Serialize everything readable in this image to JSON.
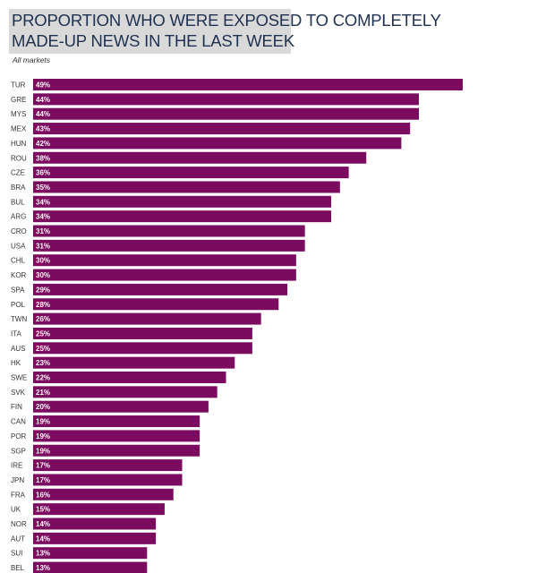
{
  "chart_data": {
    "type": "bar",
    "orientation": "horizontal",
    "title_lines": [
      "PROPORTION WHO WERE EXPOSED TO COMPLETELY",
      "MADE-UP NEWS IN THE LAST WEEK"
    ],
    "subtitle": "All markets",
    "categories": [
      "TUR",
      "GRE",
      "MYS",
      "MEX",
      "HUN",
      "ROU",
      "CZE",
      "BRA",
      "BUL",
      "ARG",
      "CRO",
      "USA",
      "CHL",
      "KOR",
      "SPA",
      "POL",
      "TWN",
      "ITA",
      "AUS",
      "HK",
      "SWE",
      "SVK",
      "FIN",
      "CAN",
      "POR",
      "SGP",
      "IRE",
      "JPN",
      "FRA",
      "UK",
      "NOR",
      "AUT",
      "SUI",
      "BEL"
    ],
    "values": [
      49,
      44,
      44,
      43,
      42,
      38,
      36,
      35,
      34,
      34,
      31,
      31,
      30,
      30,
      29,
      28,
      26,
      25,
      25,
      23,
      22,
      21,
      20,
      19,
      19,
      19,
      17,
      17,
      16,
      15,
      14,
      14,
      13,
      13
    ],
    "value_labels": [
      "49%",
      "44%",
      "44%",
      "43%",
      "42%",
      "38%",
      "36%",
      "35%",
      "34%",
      "34%",
      "31%",
      "31%",
      "30%",
      "30%",
      "29%",
      "28%",
      "26%",
      "25%",
      "25%",
      "23%",
      "22%",
      "21%",
      "20%",
      "19%",
      "19%",
      "19%",
      "17%",
      "17%",
      "16%",
      "15%",
      "14%",
      "14%",
      "13%",
      "13%"
    ],
    "unit": "%",
    "xlim": [
      0,
      49
    ],
    "colors": {
      "bar": "#7b0b5e",
      "title": "#1f3150",
      "title_bg": "#d9d9d9"
    }
  }
}
